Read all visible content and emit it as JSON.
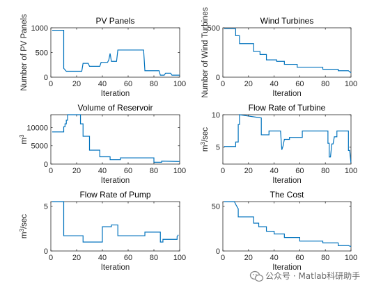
{
  "chart_data": [
    {
      "type": "line",
      "title": "PV Panels",
      "xlabel": "Iteration",
      "ylabel": "Number of PV Panels",
      "xlim": [
        0,
        100
      ],
      "ylim": [
        0,
        1000
      ],
      "xticks": [
        "0",
        "20",
        "40",
        "60",
        "80",
        "100"
      ],
      "yticks": [
        {
          "v": 0,
          "t": "0"
        },
        {
          "v": 500,
          "t": "500"
        },
        {
          "v": 1000,
          "t": "1000"
        }
      ],
      "x": [
        1,
        10,
        10,
        11,
        12,
        13,
        24,
        25,
        29,
        30,
        38,
        39,
        44,
        45,
        46,
        47,
        48,
        51,
        52,
        72,
        73,
        84,
        85,
        88,
        89,
        93,
        94,
        100
      ],
      "y": [
        950,
        950,
        180,
        150,
        120,
        120,
        120,
        280,
        280,
        220,
        220,
        300,
        300,
        350,
        480,
        320,
        320,
        320,
        550,
        550,
        130,
        130,
        40,
        40,
        80,
        80,
        40,
        40
      ],
      "color": "#0072BD"
    },
    {
      "type": "line",
      "title": "Wind Turbines",
      "xlabel": "Iteration",
      "ylabel": "Number of Wind Turbines",
      "xlim": [
        0,
        100
      ],
      "ylim": [
        0,
        500
      ],
      "xticks": [
        "0",
        "20",
        "40",
        "60",
        "80",
        "100"
      ],
      "yticks": [
        {
          "v": 0,
          "t": "0"
        },
        {
          "v": 500,
          "t": "500"
        }
      ],
      "x": [
        1,
        10,
        10,
        13,
        13,
        24,
        24,
        29,
        29,
        34,
        34,
        42,
        42,
        48,
        48,
        58,
        58,
        78,
        78,
        90,
        90,
        98,
        100
      ],
      "y": [
        490,
        490,
        420,
        420,
        340,
        340,
        260,
        260,
        230,
        230,
        175,
        175,
        160,
        160,
        130,
        130,
        100,
        100,
        80,
        80,
        65,
        65,
        45
      ],
      "color": "#0072BD"
    },
    {
      "type": "line",
      "title": "Volume of Reservoir",
      "xlabel": "Iteration",
      "ylabel": "m^3",
      "xlim": [
        0,
        100
      ],
      "ylim": [
        0,
        13500
      ],
      "xticks": [
        "0",
        "20",
        "40",
        "60",
        "80",
        "100"
      ],
      "yticks": [
        {
          "v": 0,
          "t": "0"
        },
        {
          "v": 5000,
          "t": "5000"
        },
        {
          "v": 10000,
          "t": "10000"
        }
      ],
      "x": [
        1,
        10,
        10,
        11,
        11,
        12,
        12,
        13,
        13,
        23,
        23,
        25,
        25,
        30,
        30,
        38,
        38,
        46,
        46,
        54,
        54,
        80,
        80,
        86,
        86,
        100
      ],
      "y": [
        8800,
        8800,
        10200,
        10200,
        11000,
        11000,
        12000,
        12000,
        13500,
        13500,
        11000,
        11000,
        7600,
        7600,
        3800,
        3800,
        2000,
        2000,
        1200,
        1200,
        1700,
        1700,
        500,
        500,
        800,
        700
      ],
      "color": "#0072BD"
    },
    {
      "type": "line",
      "title": "Flow Rate of Turbine",
      "xlabel": "Iteration",
      "ylabel": "m^3/sec",
      "xlim": [
        0,
        100
      ],
      "ylim": [
        2.4,
        10
      ],
      "xticks": [
        "0",
        "20",
        "40",
        "60",
        "80",
        "100"
      ],
      "yticks": [
        {
          "v": 5,
          "t": "5"
        },
        {
          "v": 10,
          "t": "10"
        }
      ],
      "x": [
        1,
        10,
        10,
        12,
        12,
        13,
        13,
        30,
        30,
        36,
        36,
        45,
        46,
        47,
        48,
        52,
        52,
        62,
        62,
        82,
        82,
        83,
        83,
        84,
        85,
        86,
        87,
        89,
        89,
        98,
        98,
        99,
        100
      ],
      "y": [
        5.1,
        5.1,
        5.8,
        5.8,
        8.5,
        8.5,
        10.0,
        9.5,
        6.9,
        6.9,
        7.5,
        7.5,
        4.6,
        5.2,
        6.2,
        6.2,
        6.5,
        6.5,
        7.5,
        7.5,
        5.6,
        5.6,
        3.5,
        3.5,
        5.5,
        5.5,
        6.6,
        6.6,
        7.5,
        7.5,
        4.5,
        4.5,
        2.5
      ],
      "color": "#0072BD"
    },
    {
      "type": "line",
      "title": "Flow Rate of Pump",
      "xlabel": "Iteration",
      "ylabel": "m^3/sec",
      "xlim": [
        0,
        100
      ],
      "ylim": [
        0,
        5.5
      ],
      "xticks": [
        "0",
        "20",
        "40",
        "60",
        "80",
        "100"
      ],
      "yticks": [
        {
          "v": 0,
          "t": "0"
        },
        {
          "v": 5,
          "t": "5"
        }
      ],
      "x": [
        1,
        10,
        10,
        25,
        25,
        40,
        40,
        47,
        47,
        52,
        52,
        73,
        73,
        85,
        85,
        87,
        87,
        98,
        98,
        99
      ],
      "y": [
        5.5,
        5.5,
        1.7,
        1.7,
        1.0,
        1.0,
        2.7,
        2.7,
        2.9,
        2.9,
        1.7,
        1.7,
        2.1,
        2.1,
        1.0,
        1.0,
        1.3,
        1.3,
        1.6,
        1.8
      ],
      "color": "#0072BD"
    },
    {
      "type": "line",
      "title": "The Cost",
      "xlabel": "Iteration",
      "ylabel": "",
      "xlim": [
        0,
        100
      ],
      "ylim": [
        0,
        55
      ],
      "xticks": [
        "0",
        "20",
        "40",
        "60",
        "80",
        "100"
      ],
      "yticks": [
        {
          "v": 0,
          "t": "0"
        },
        {
          "v": 50,
          "t": "50"
        }
      ],
      "x": [
        1,
        9,
        10,
        12,
        12,
        24,
        24,
        28,
        28,
        34,
        34,
        40,
        40,
        48,
        48,
        60,
        60,
        78,
        78,
        90,
        90,
        98,
        100
      ],
      "y": [
        55,
        55,
        52,
        47,
        38,
        38,
        31,
        31,
        27,
        27,
        22,
        22,
        19,
        19,
        15,
        15,
        11,
        11,
        9,
        9,
        6,
        6,
        5
      ],
      "color": "#0072BD"
    }
  ],
  "watermark": {
    "text": "公众号 · Matlab科研助手"
  }
}
